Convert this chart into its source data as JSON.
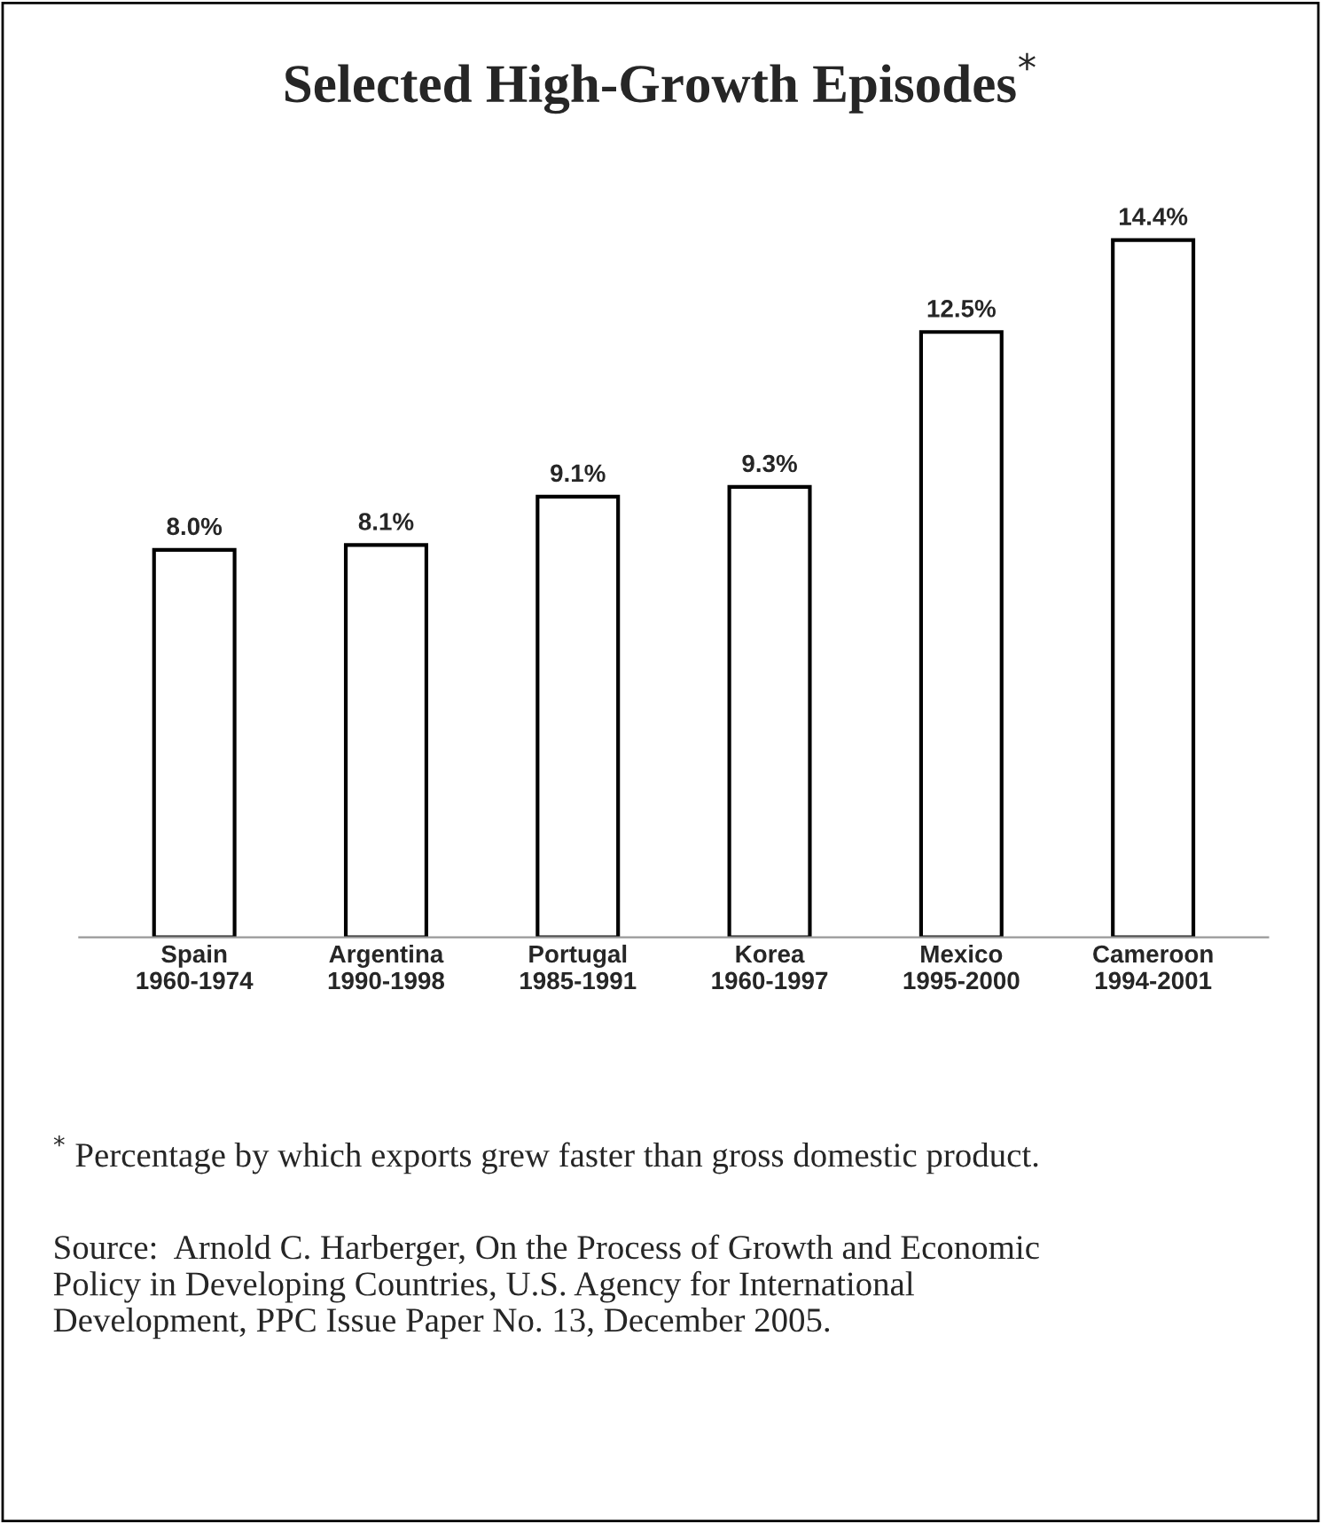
{
  "chart_data": {
    "type": "bar",
    "title": "Selected High-Growth Episodes$^{*}$",
    "categories": [
      "Spain\n1960-1974",
      "Argentina\n1990-1998",
      "Portugal\n1985-1991",
      "Korea\n1960-1997",
      "Mexico\n1995-2000",
      "Cameroon\n1994-2001"
    ],
    "values": [
      8.0,
      8.1,
      9.1,
      9.3,
      12.5,
      14.4
    ],
    "value_labels": [
      "8.0%",
      "8.1%",
      "9.1%",
      "9.3%",
      "12.5%",
      "14.4%"
    ],
    "color": "#ffffff",
    "grid": false,
    "legend": false,
    "tick_labels": "x",
    "annotations": [
      "$^{*}$ Percentage by which exports grew faster than gross domestic product.",
      "Source:  Arnold C. Harberger, On the Process of Growth and Economic Policy in Developing Countries, U.S. Agency for International Development, PPC Issue Paper No. 13, December 2005."
    ]
  }
}
